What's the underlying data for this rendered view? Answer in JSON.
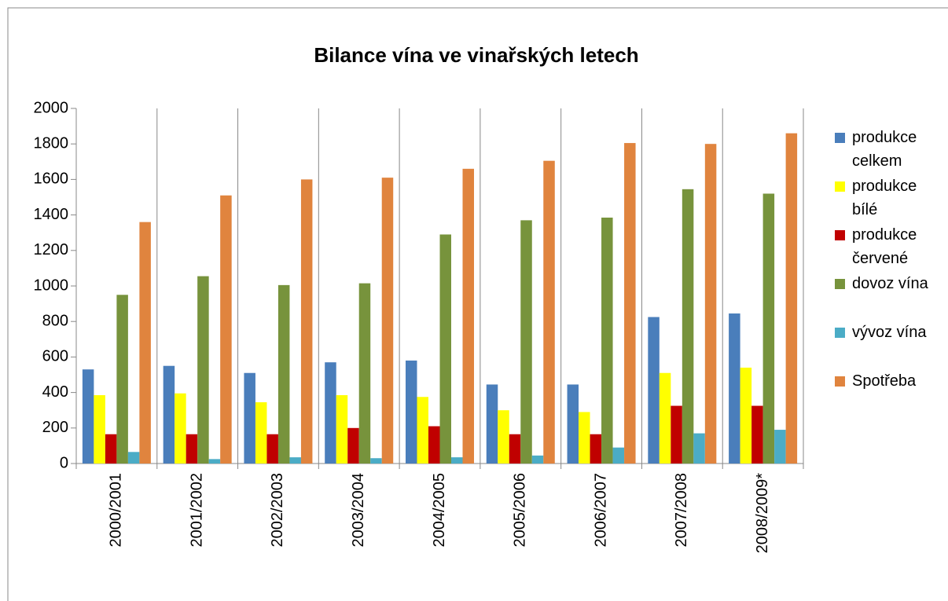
{
  "chart_data": {
    "type": "bar",
    "title": "Bilance  vína ve vinařských letech",
    "categories": [
      "2000/2001",
      "2001/2002",
      "2002/2003",
      "2003/2004",
      "2004/2005",
      "2005/2006",
      "2006/2007",
      "2007/2008",
      "2008/2009*"
    ],
    "series": [
      {
        "name": "produkce celkem",
        "color": "#4a7ebb",
        "values": [
          530,
          550,
          510,
          570,
          580,
          445,
          445,
          825,
          845
        ]
      },
      {
        "name": "produkce bílé",
        "color": "#ffff00",
        "values": [
          385,
          395,
          345,
          385,
          375,
          300,
          290,
          510,
          540
        ]
      },
      {
        "name": "produkce červené",
        "color": "#c00000",
        "values": [
          165,
          165,
          165,
          200,
          210,
          165,
          165,
          325,
          325
        ]
      },
      {
        "name": "dovoz vína",
        "color": "#77933c",
        "values": [
          950,
          1055,
          1005,
          1015,
          1290,
          1370,
          1385,
          1545,
          1520
        ]
      },
      {
        "name": "vývoz vína",
        "color": "#4bacc6",
        "values": [
          65,
          25,
          35,
          30,
          35,
          45,
          90,
          170,
          190
        ]
      },
      {
        "name": "Spotřeba",
        "color": "#e0843e",
        "values": [
          1360,
          1510,
          1600,
          1610,
          1660,
          1705,
          1805,
          1800,
          1860
        ]
      }
    ],
    "ylim": [
      0,
      2000
    ],
    "yticks": [
      0,
      200,
      400,
      600,
      800,
      1000,
      1200,
      1400,
      1600,
      1800,
      2000
    ],
    "legend": "right"
  }
}
